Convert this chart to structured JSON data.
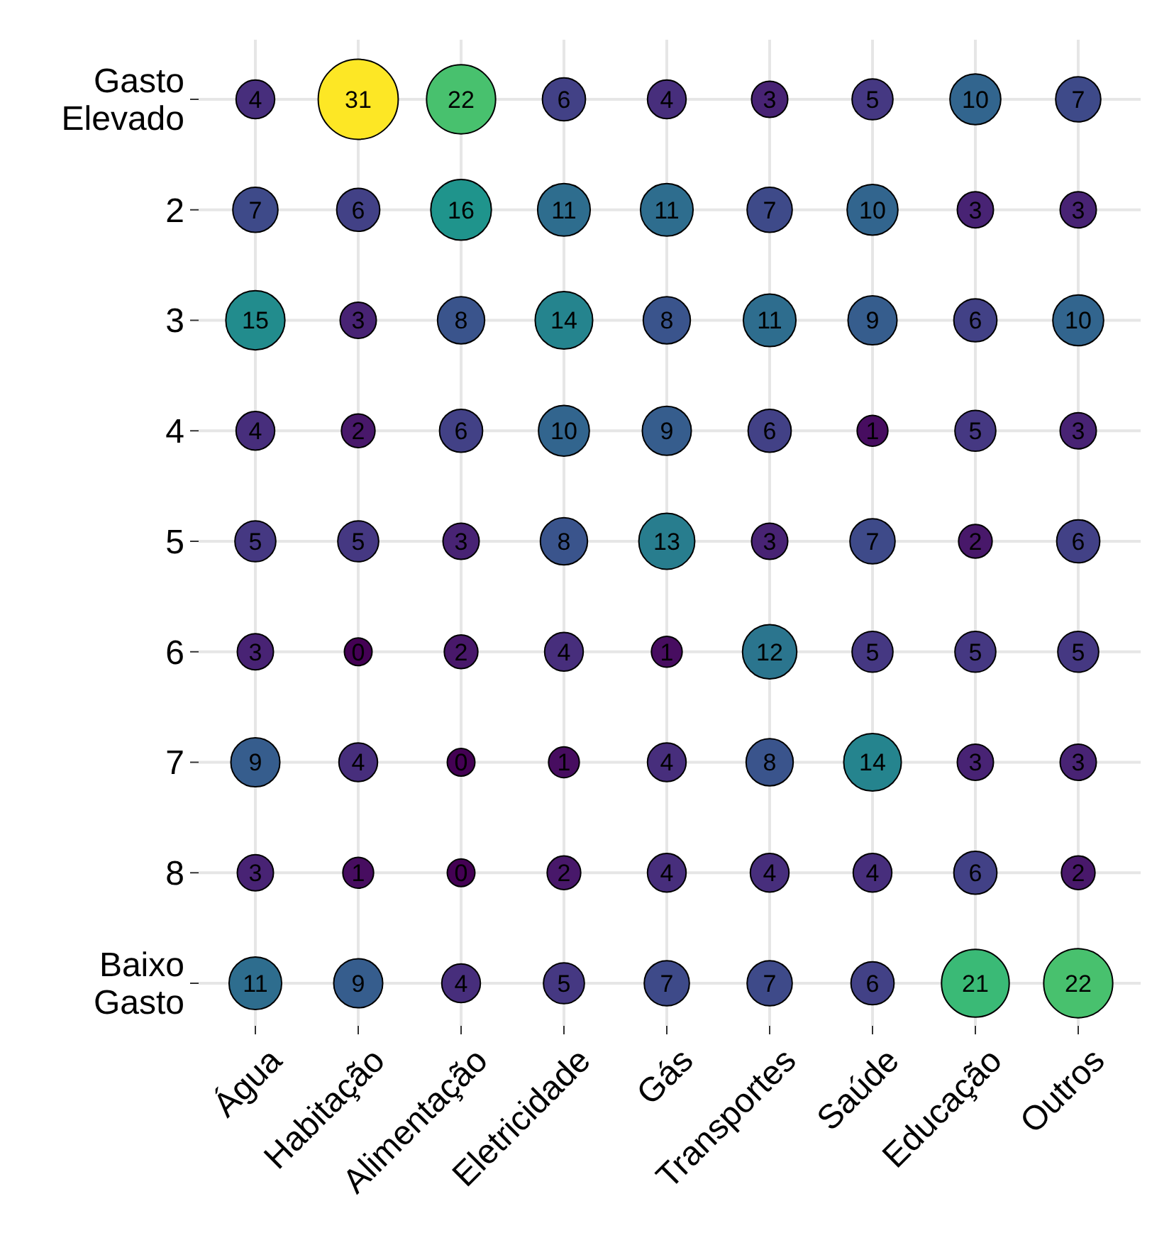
{
  "chart_data": {
    "type": "heatmap",
    "categories": [
      "Água",
      "Habitação",
      "Alimentação",
      "Eletricidade",
      "Gás",
      "Transportes",
      "Saúde",
      "Educação",
      "Outros"
    ],
    "y_categories": [
      "Gasto\nElevado",
      "2",
      "3",
      "4",
      "5",
      "6",
      "7",
      "8",
      "Baixo\nGasto"
    ],
    "cells": [
      [
        4,
        31,
        22,
        6,
        4,
        3,
        5,
        10,
        7
      ],
      [
        7,
        6,
        16,
        11,
        11,
        7,
        10,
        3,
        3
      ],
      [
        15,
        3,
        8,
        14,
        8,
        11,
        9,
        6,
        10
      ],
      [
        4,
        2,
        6,
        10,
        9,
        6,
        1,
        5,
        3
      ],
      [
        5,
        5,
        3,
        8,
        13,
        3,
        7,
        2,
        6
      ],
      [
        3,
        0,
        2,
        4,
        1,
        12,
        5,
        5,
        5
      ],
      [
        9,
        4,
        0,
        1,
        4,
        8,
        14,
        3,
        3
      ],
      [
        3,
        1,
        0,
        2,
        4,
        4,
        4,
        6,
        2
      ],
      [
        11,
        9,
        4,
        5,
        7,
        7,
        6,
        21,
        22
      ]
    ],
    "data_labels": true,
    "grid": true
  }
}
